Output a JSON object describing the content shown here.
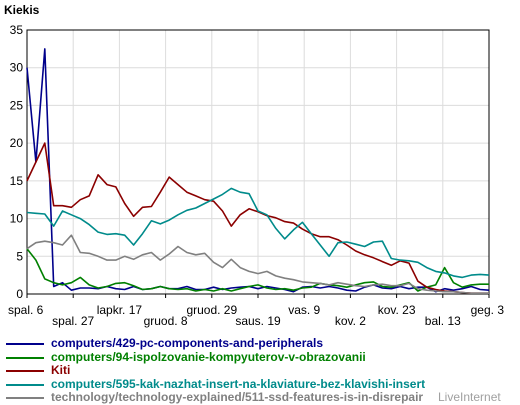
{
  "chart_data": {
    "type": "line",
    "title": "Kiekis",
    "ylim": [
      0,
      35
    ],
    "yticks": [
      0,
      5,
      10,
      15,
      20,
      25,
      30,
      35
    ],
    "grid": true,
    "legend_position": "bottom",
    "x_count": 53,
    "xticks": [
      {
        "i": 0,
        "label": "spal. 6",
        "row": 1
      },
      {
        "i": 3,
        "label": "spal. 27",
        "row": 2
      },
      {
        "i": 6,
        "label": "lapkr. 17",
        "row": 1
      },
      {
        "i": 9,
        "label": "gruod. 8",
        "row": 2
      },
      {
        "i": 12,
        "label": "gruod. 29",
        "row": 1
      },
      {
        "i": 15,
        "label": "saus. 19",
        "row": 2
      },
      {
        "i": 18,
        "label": "vas. 9",
        "row": 1
      },
      {
        "i": 21,
        "label": "kov. 2",
        "row": 2
      },
      {
        "i": 24,
        "label": "kov. 23",
        "row": 1
      },
      {
        "i": 27,
        "label": "bal. 13",
        "row": 2
      },
      {
        "i": 30,
        "label": "geg. 3",
        "row": 1
      }
    ],
    "series": [
      {
        "name": "computers/429-pc-components-and-peripherals",
        "color": "#00008b",
        "values": [
          30,
          17.5,
          32.5,
          1,
          1.5,
          0.5,
          0.8,
          0.8,
          0.7,
          1,
          0.7,
          0.6,
          1,
          0.6,
          0.7,
          1,
          0.7,
          0.7,
          1,
          0.6,
          0.6,
          0.9,
          0.6,
          0.8,
          0.9,
          1,
          0.7,
          1,
          0.8,
          0.6,
          0.3,
          0.9,
          1,
          0.8,
          1,
          0.8,
          0.5,
          0.4,
          0.9,
          1.2,
          0.8,
          0.7,
          1,
          0.7,
          0.9,
          0.9,
          0.3,
          0.7,
          0.5,
          0.7,
          1,
          0.6,
          0.5
        ]
      },
      {
        "name": "computers/94-ispolzovanie-kompyuterov-v-obrazovanii",
        "color": "#008000",
        "values": [
          6,
          4.5,
          2,
          1.5,
          1.2,
          1.5,
          2.2,
          1.2,
          0.8,
          1,
          1.4,
          1.5,
          1.1,
          0.6,
          0.7,
          1,
          0.7,
          0.6,
          0.7,
          0.4,
          0.6,
          0.4,
          0.7,
          0.4,
          0.7,
          1,
          1.2,
          0.8,
          0.6,
          0.7,
          0.5,
          0.8,
          0.9,
          1.4,
          1.2,
          1.1,
          0.9,
          1.2,
          1.5,
          1.6,
          1,
          0.9,
          1.2,
          1.5,
          0.4,
          0.9,
          1.2,
          3.5,
          1.5,
          0.9,
          1.2,
          1.3,
          1.3
        ]
      },
      {
        "name": "Kiti",
        "color": "#8b0000",
        "values": [
          15,
          17.5,
          20,
          11.7,
          11.7,
          11.5,
          12.5,
          13,
          15.8,
          14.5,
          14.2,
          12,
          10.3,
          11.5,
          11.6,
          13.5,
          15.5,
          14.5,
          13.5,
          13,
          12.5,
          12.3,
          11,
          9,
          10.5,
          11.3,
          10.9,
          10.4,
          10.1,
          9.6,
          9.4,
          8.6,
          8,
          7.6,
          7.6,
          7.2,
          6.5,
          5.7,
          5.2,
          4.8,
          4.3,
          3.8,
          4.4,
          4.1,
          1.7,
          0.9,
          0.6,
          0.4,
          0.3,
          0.2,
          0.1,
          0.1,
          0.1
        ]
      },
      {
        "name": "computers/595-kak-nazhat-insert-na-klaviature-bez-klavishi-insert",
        "color": "#008b8b",
        "values": [
          10.8,
          10.7,
          10.6,
          9,
          11,
          10.5,
          10,
          9.2,
          8.2,
          7.9,
          8,
          7.8,
          6.5,
          8,
          9.7,
          9.3,
          9.8,
          10.5,
          11.1,
          11.4,
          12,
          12.6,
          13.2,
          14,
          13.5,
          13.3,
          11,
          10.5,
          8.7,
          7.3,
          8.5,
          9.5,
          8,
          6.5,
          5,
          6.8,
          6.9,
          6.6,
          6.3,
          6.9,
          7,
          4.7,
          4.5,
          4.4,
          4.2,
          3.5,
          3,
          2.8,
          2.4,
          2.2,
          2.5,
          2.6,
          2.5
        ]
      },
      {
        "name": "technology/technology-explained/511-ssd-features-is-in-disrepair",
        "color": "#808080",
        "values": [
          6,
          6.8,
          7,
          6.8,
          6.5,
          7.8,
          5.5,
          5.4,
          5,
          4.5,
          4.5,
          5,
          4.6,
          5.2,
          5.5,
          4.5,
          5.3,
          6.3,
          5.5,
          5.2,
          5.4,
          4.2,
          3.5,
          4.6,
          3.5,
          3,
          2.7,
          3,
          2.4,
          2.1,
          1.9,
          1.6,
          1.5,
          1.4,
          1.2,
          1.5,
          1.3,
          1.1,
          1,
          1.2,
          1.3,
          1.1,
          1.1,
          1.4,
          0.7,
          0.5,
          0.4,
          0.3,
          0.3,
          0.2,
          0.1,
          0.1,
          0.1
        ]
      }
    ]
  },
  "watermark": "LiveInternet"
}
